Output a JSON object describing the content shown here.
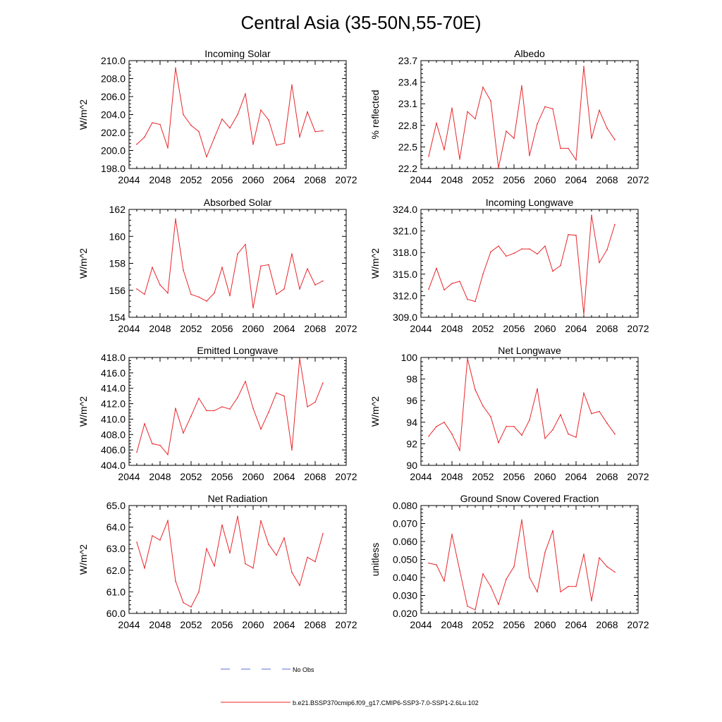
{
  "page_title": "Central Asia (35-50N,55-70E)",
  "legend": {
    "entries": [
      {
        "label": "No Obs",
        "color": "#5b6ed6",
        "style": "dashed"
      },
      {
        "label": "b.e21.BSSP370cmip6.f09_g17.CMIP6-SSP3-7.0-SSP1-2.6Lu.102",
        "color": "#e8262b",
        "style": "solid"
      }
    ]
  },
  "series_color": "#e8262b",
  "chart_data": [
    {
      "type": "line",
      "title": "Incoming Solar",
      "ylabel": "W/m^2",
      "xlim": [
        2044,
        2072
      ],
      "ylim": [
        198,
        210
      ],
      "xticks": [
        "2044",
        "2048",
        "2052",
        "2056",
        "2060",
        "2064",
        "2068",
        "2072"
      ],
      "yticks": [
        "198.0",
        "200.0",
        "202.0",
        "204.0",
        "206.0",
        "208.0",
        "210.0"
      ],
      "x": [
        2045,
        2046,
        2047,
        2048,
        2049,
        2050,
        2051,
        2052,
        2053,
        2054,
        2055,
        2056,
        2057,
        2058,
        2059,
        2060,
        2061,
        2062,
        2063,
        2064,
        2065,
        2066,
        2067,
        2068,
        2069
      ],
      "values": [
        200.7,
        201.5,
        203.1,
        202.9,
        200.3,
        209.2,
        204.0,
        202.8,
        202.1,
        199.3,
        201.4,
        203.5,
        202.5,
        204.0,
        206.3,
        200.7,
        204.5,
        203.4,
        200.6,
        200.8,
        207.3,
        201.5,
        204.3,
        202.1,
        202.2
      ]
    },
    {
      "type": "line",
      "title": "Albedo",
      "ylabel": "% reflected",
      "xlim": [
        2044,
        2072
      ],
      "ylim": [
        22.2,
        23.7
      ],
      "xticks": [
        "2044",
        "2048",
        "2052",
        "2056",
        "2060",
        "2064",
        "2068",
        "2072"
      ],
      "yticks": [
        "22.2",
        "22.5",
        "22.8",
        "23.1",
        "23.4",
        "23.7"
      ],
      "x": [
        2045,
        2046,
        2047,
        2048,
        2049,
        2050,
        2051,
        2052,
        2053,
        2054,
        2055,
        2056,
        2057,
        2058,
        2059,
        2060,
        2061,
        2062,
        2063,
        2064,
        2065,
        2066,
        2067,
        2068,
        2069
      ],
      "values": [
        22.37,
        22.83,
        22.46,
        23.04,
        22.33,
        22.99,
        22.89,
        23.33,
        23.14,
        22.21,
        22.72,
        22.62,
        23.35,
        22.38,
        22.82,
        23.06,
        23.03,
        22.48,
        22.48,
        22.32,
        23.62,
        22.62,
        23.01,
        22.76,
        22.6
      ]
    },
    {
      "type": "line",
      "title": "Absorbed Solar",
      "ylabel": "W/m^2",
      "xlim": [
        2044,
        2072
      ],
      "ylim": [
        154,
        162
      ],
      "xticks": [
        "2044",
        "2048",
        "2052",
        "2056",
        "2060",
        "2064",
        "2068",
        "2072"
      ],
      "yticks": [
        "154",
        "156",
        "158",
        "160",
        "162"
      ],
      "x": [
        2045,
        2046,
        2047,
        2048,
        2049,
        2050,
        2051,
        2052,
        2053,
        2054,
        2055,
        2056,
        2057,
        2058,
        2059,
        2060,
        2061,
        2062,
        2063,
        2064,
        2065,
        2066,
        2067,
        2068,
        2069
      ],
      "values": [
        156.1,
        155.7,
        157.7,
        156.4,
        155.8,
        161.3,
        157.5,
        155.7,
        155.5,
        155.2,
        155.8,
        157.7,
        155.6,
        158.7,
        159.4,
        154.7,
        157.8,
        157.9,
        155.7,
        156.1,
        158.7,
        156.1,
        157.6,
        156.4,
        156.7
      ]
    },
    {
      "type": "line",
      "title": "Incoming Longwave",
      "ylabel": "W/m^2",
      "xlim": [
        2044,
        2072
      ],
      "ylim": [
        309,
        324
      ],
      "xticks": [
        "2044",
        "2048",
        "2052",
        "2056",
        "2060",
        "2064",
        "2068",
        "2072"
      ],
      "yticks": [
        "309.0",
        "312.0",
        "315.0",
        "318.0",
        "321.0",
        "324.0"
      ],
      "x": [
        2045,
        2046,
        2047,
        2048,
        2049,
        2050,
        2051,
        2052,
        2053,
        2054,
        2055,
        2056,
        2057,
        2058,
        2059,
        2060,
        2061,
        2062,
        2063,
        2064,
        2065,
        2066,
        2067,
        2068,
        2069
      ],
      "values": [
        312.9,
        315.8,
        312.8,
        313.7,
        314.0,
        311.5,
        311.2,
        315.0,
        318.1,
        318.9,
        317.5,
        317.9,
        318.5,
        318.5,
        317.8,
        318.9,
        315.4,
        316.2,
        320.5,
        320.4,
        309.4,
        323.2,
        316.6,
        318.4,
        321.9
      ]
    },
    {
      "type": "line",
      "title": "Emitted Longwave",
      "ylabel": "W/m^2",
      "xlim": [
        2044,
        2072
      ],
      "ylim": [
        404,
        418
      ],
      "xticks": [
        "2044",
        "2048",
        "2052",
        "2056",
        "2060",
        "2064",
        "2068",
        "2072"
      ],
      "yticks": [
        "404.0",
        "406.0",
        "408.0",
        "410.0",
        "412.0",
        "414.0",
        "416.0",
        "418.0"
      ],
      "x": [
        2045,
        2046,
        2047,
        2048,
        2049,
        2050,
        2051,
        2052,
        2053,
        2054,
        2055,
        2056,
        2057,
        2058,
        2059,
        2060,
        2061,
        2062,
        2063,
        2064,
        2065,
        2066,
        2067,
        2068,
        2069
      ],
      "values": [
        405.7,
        409.4,
        406.8,
        406.6,
        405.4,
        411.4,
        408.2,
        410.4,
        412.7,
        411.1,
        411.1,
        411.6,
        411.3,
        412.8,
        414.9,
        411.4,
        408.7,
        410.9,
        413.4,
        413.0,
        406.0,
        417.9,
        411.6,
        412.2,
        414.7
      ]
    },
    {
      "type": "line",
      "title": "Net Longwave",
      "ylabel": "W/m^2",
      "xlim": [
        2044,
        2072
      ],
      "ylim": [
        90,
        100
      ],
      "xticks": [
        "2044",
        "2048",
        "2052",
        "2056",
        "2060",
        "2064",
        "2068",
        "2072"
      ],
      "yticks": [
        "90",
        "92",
        "94",
        "96",
        "98",
        "100"
      ],
      "x": [
        2045,
        2046,
        2047,
        2048,
        2049,
        2050,
        2051,
        2052,
        2053,
        2054,
        2055,
        2056,
        2057,
        2058,
        2059,
        2060,
        2061,
        2062,
        2063,
        2064,
        2065,
        2066,
        2067,
        2068,
        2069
      ],
      "values": [
        92.7,
        93.6,
        94.0,
        92.9,
        91.4,
        99.9,
        97.0,
        95.5,
        94.5,
        92.1,
        93.6,
        93.6,
        92.8,
        94.2,
        97.1,
        92.5,
        93.3,
        94.7,
        92.9,
        92.6,
        96.7,
        94.8,
        95.0,
        93.9,
        92.9
      ]
    },
    {
      "type": "line",
      "title": "Net Radiation",
      "ylabel": "W/m^2",
      "xlim": [
        2044,
        2072
      ],
      "ylim": [
        60,
        65
      ],
      "xticks": [
        "2044",
        "2048",
        "2052",
        "2056",
        "2060",
        "2064",
        "2068",
        "2072"
      ],
      "yticks": [
        "60.0",
        "61.0",
        "62.0",
        "63.0",
        "64.0",
        "65.0"
      ],
      "x": [
        2045,
        2046,
        2047,
        2048,
        2049,
        2050,
        2051,
        2052,
        2053,
        2054,
        2055,
        2056,
        2057,
        2058,
        2059,
        2060,
        2061,
        2062,
        2063,
        2064,
        2065,
        2066,
        2067,
        2068,
        2069
      ],
      "values": [
        63.3,
        62.1,
        63.6,
        63.4,
        64.3,
        61.5,
        60.5,
        60.3,
        61.0,
        63.0,
        62.2,
        64.1,
        62.8,
        64.5,
        62.3,
        62.1,
        64.3,
        63.2,
        62.7,
        63.5,
        61.9,
        61.3,
        62.6,
        62.4,
        63.7
      ]
    },
    {
      "type": "line",
      "title": "Ground Snow Covered Fraction",
      "ylabel": "unitless",
      "xlim": [
        2044,
        2072
      ],
      "ylim": [
        0.02,
        0.08
      ],
      "xticks": [
        "2044",
        "2048",
        "2052",
        "2056",
        "2060",
        "2064",
        "2068",
        "2072"
      ],
      "yticks": [
        "0.020",
        "0.030",
        "0.040",
        "0.050",
        "0.060",
        "0.070",
        "0.080"
      ],
      "x": [
        2045,
        2046,
        2047,
        2048,
        2049,
        2050,
        2051,
        2052,
        2053,
        2054,
        2055,
        2056,
        2057,
        2058,
        2059,
        2060,
        2061,
        2062,
        2063,
        2064,
        2065,
        2066,
        2067,
        2068,
        2069
      ],
      "values": [
        0.048,
        0.047,
        0.038,
        0.064,
        0.044,
        0.024,
        0.022,
        0.042,
        0.035,
        0.025,
        0.039,
        0.046,
        0.072,
        0.04,
        0.032,
        0.054,
        0.066,
        0.032,
        0.035,
        0.035,
        0.053,
        0.027,
        0.051,
        0.046,
        0.043
      ]
    }
  ]
}
